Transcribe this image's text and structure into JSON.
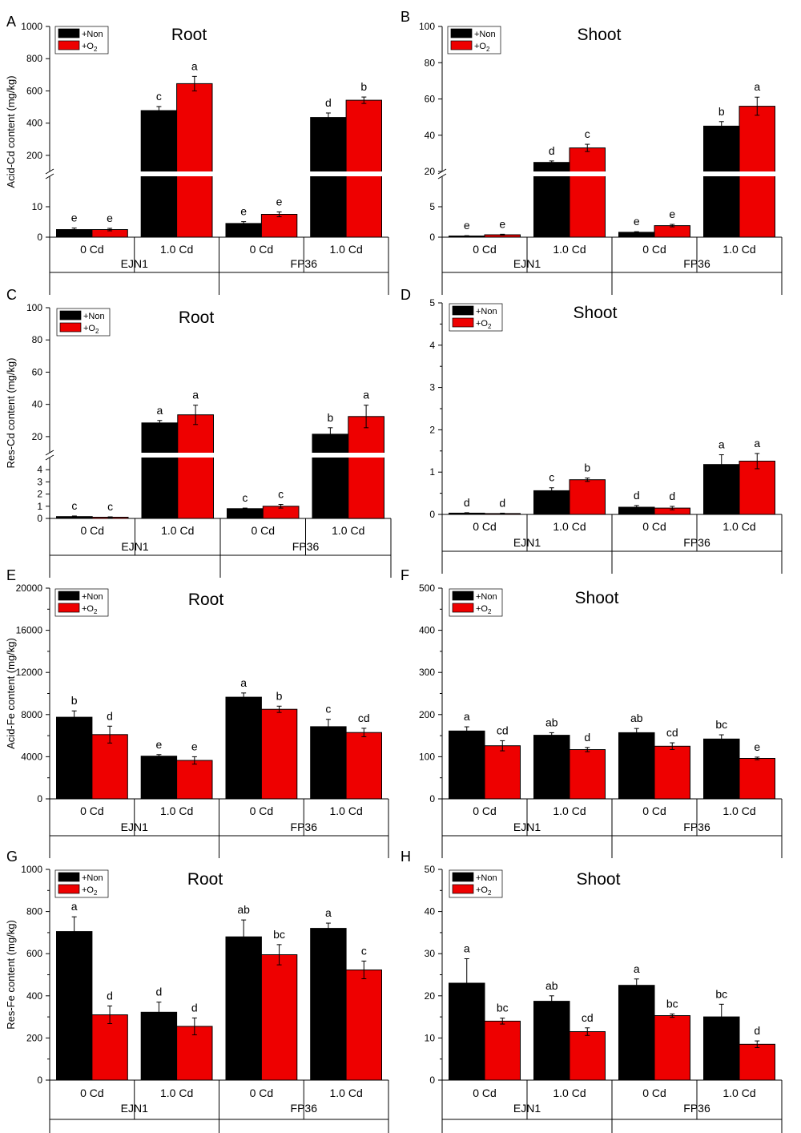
{
  "series_colors": {
    "Non": "#000000",
    "O2": "#ee0000"
  },
  "legend": [
    {
      "label": "+Non",
      "color": "#000000"
    },
    {
      "label": "+O",
      "sub": "2",
      "color": "#ee0000"
    }
  ],
  "chart_data": [
    {
      "panel": "A",
      "type": "bar",
      "title": "Root",
      "ylabel": "Acid-Cd content (mg/kg)",
      "groups": [
        "EJN1",
        "FP36"
      ],
      "categories": [
        "0 Cd",
        "1.0 Cd",
        "0 Cd",
        "1.0 Cd"
      ],
      "series": [
        {
          "name": "+Non",
          "values": [
            2.5,
            478,
            4.5,
            435
          ],
          "errors": [
            0.5,
            25,
            0.6,
            28
          ],
          "letters": [
            "e",
            "c",
            "e",
            "d"
          ]
        },
        {
          "name": "+O2",
          "values": [
            2.5,
            645,
            7.5,
            542
          ],
          "errors": [
            0.4,
            45,
            0.8,
            20
          ],
          "letters": [
            "e",
            "a",
            "e",
            "b"
          ]
        }
      ],
      "axis_break": {
        "lower": [
          0,
          20
        ],
        "upper": [
          100,
          1000
        ],
        "lower_ticks": [
          0,
          10
        ],
        "upper_ticks": [
          200,
          400,
          600,
          800,
          1000
        ]
      }
    },
    {
      "panel": "B",
      "type": "bar",
      "title": "Shoot",
      "groups": [
        "EJN1",
        "FP36"
      ],
      "categories": [
        "0 Cd",
        "1.0 Cd",
        "0 Cd",
        "1.0 Cd"
      ],
      "series": [
        {
          "name": "+Non",
          "values": [
            0.2,
            25,
            0.8,
            45
          ],
          "errors": [
            0.05,
            0.8,
            0.1,
            2.5
          ],
          "letters": [
            "e",
            "d",
            "e",
            "b"
          ]
        },
        {
          "name": "+O2",
          "values": [
            0.4,
            33,
            1.9,
            56
          ],
          "errors": [
            0.08,
            2,
            0.2,
            5
          ],
          "letters": [
            "e",
            "c",
            "e",
            "a"
          ]
        }
      ],
      "axis_break": {
        "lower": [
          0,
          10
        ],
        "upper": [
          20,
          100
        ],
        "lower_ticks": [
          0,
          5
        ],
        "upper_ticks": [
          20,
          40,
          60,
          80,
          100
        ]
      }
    },
    {
      "panel": "C",
      "type": "bar",
      "title": "Root",
      "ylabel": "Res-Cd content (mg/kg)",
      "groups": [
        "EJN1",
        "FP36"
      ],
      "categories": [
        "0 Cd",
        "1.0 Cd",
        "0 Cd",
        "1.0 Cd"
      ],
      "series": [
        {
          "name": "+Non",
          "values": [
            0.15,
            28.5,
            0.8,
            21.5
          ],
          "errors": [
            0.05,
            1.5,
            0.05,
            4
          ],
          "letters": [
            "c",
            "a",
            "c",
            "b"
          ]
        },
        {
          "name": "+O2",
          "values": [
            0.1,
            33.5,
            1.0,
            32.5
          ],
          "errors": [
            0.03,
            6,
            0.15,
            7
          ],
          "letters": [
            "c",
            "a",
            "c",
            "a"
          ]
        }
      ],
      "axis_break": {
        "lower": [
          0,
          5
        ],
        "upper": [
          10,
          100
        ],
        "lower_ticks": [
          0,
          1,
          2,
          3,
          4
        ],
        "upper_ticks": [
          20,
          40,
          60,
          80,
          100
        ]
      }
    },
    {
      "panel": "D",
      "type": "bar",
      "title": "Shoot",
      "ylim": [
        0,
        5
      ],
      "yticks": [
        0,
        1,
        2,
        3,
        4,
        5
      ],
      "groups": [
        "EJN1",
        "FP36"
      ],
      "categories": [
        "0 Cd",
        "1.0 Cd",
        "0 Cd",
        "1.0 Cd"
      ],
      "series": [
        {
          "name": "+Non",
          "values": [
            0.03,
            0.56,
            0.17,
            1.18
          ],
          "errors": [
            0.01,
            0.07,
            0.04,
            0.23
          ],
          "letters": [
            "d",
            "c",
            "d",
            "a"
          ]
        },
        {
          "name": "+O2",
          "values": [
            0.02,
            0.82,
            0.15,
            1.26
          ],
          "errors": [
            0.01,
            0.04,
            0.04,
            0.18
          ],
          "letters": [
            "d",
            "b",
            "d",
            "a"
          ]
        }
      ]
    },
    {
      "panel": "E",
      "type": "bar",
      "title": "Root",
      "ylabel": "Acid-Fe content (mg/kg)",
      "ylim": [
        0,
        20000
      ],
      "yticks": [
        0,
        4000,
        8000,
        12000,
        16000,
        20000
      ],
      "groups": [
        "EJN1",
        "FP36"
      ],
      "categories": [
        "0 Cd",
        "1.0 Cd",
        "0 Cd",
        "1.0 Cd"
      ],
      "series": [
        {
          "name": "+Non",
          "values": [
            7750,
            4050,
            9650,
            6850
          ],
          "errors": [
            600,
            150,
            400,
            700
          ],
          "letters": [
            "b",
            "e",
            "a",
            "c"
          ]
        },
        {
          "name": "+O2",
          "values": [
            6100,
            3650,
            8500,
            6300
          ],
          "errors": [
            800,
            350,
            300,
            400
          ],
          "letters": [
            "d",
            "e",
            "b",
            "cd"
          ]
        }
      ]
    },
    {
      "panel": "F",
      "type": "bar",
      "title": "Shoot",
      "ylim": [
        0,
        500
      ],
      "yticks": [
        0,
        100,
        200,
        300,
        400,
        500
      ],
      "groups": [
        "EJN1",
        "FP36"
      ],
      "categories": [
        "0 Cd",
        "1.0 Cd",
        "0 Cd",
        "1.0 Cd"
      ],
      "series": [
        {
          "name": "+Non",
          "values": [
            161,
            151,
            157,
            142
          ],
          "errors": [
            10,
            6,
            10,
            10
          ],
          "letters": [
            "a",
            "ab",
            "ab",
            "bc"
          ]
        },
        {
          "name": "+O2",
          "values": [
            126,
            117,
            125,
            96
          ],
          "errors": [
            12,
            5,
            8,
            3
          ],
          "letters": [
            "cd",
            "d",
            "cd",
            "e"
          ]
        }
      ]
    },
    {
      "panel": "G",
      "type": "bar",
      "title": "Root",
      "ylabel": "Res-Fe content (mg/kg)",
      "ylim": [
        0,
        1000
      ],
      "yticks": [
        0,
        200,
        400,
        600,
        800,
        1000
      ],
      "groups": [
        "EJN1",
        "FP36"
      ],
      "categories": [
        "0 Cd",
        "1.0 Cd",
        "0 Cd",
        "1.0 Cd"
      ],
      "series": [
        {
          "name": "+Non",
          "values": [
            705,
            322,
            680,
            720
          ],
          "errors": [
            70,
            48,
            80,
            25
          ],
          "letters": [
            "a",
            "d",
            "ab",
            "a"
          ]
        },
        {
          "name": "+O2",
          "values": [
            310,
            255,
            595,
            523
          ],
          "errors": [
            42,
            40,
            48,
            42
          ],
          "letters": [
            "d",
            "d",
            "bc",
            "c"
          ]
        }
      ]
    },
    {
      "panel": "H",
      "type": "bar",
      "title": "Shoot",
      "ylim": [
        0,
        50
      ],
      "yticks": [
        0,
        10,
        20,
        30,
        40,
        50
      ],
      "groups": [
        "EJN1",
        "FP36"
      ],
      "categories": [
        "0 Cd",
        "1.0 Cd",
        "0 Cd",
        "1.0 Cd"
      ],
      "series": [
        {
          "name": "+Non",
          "values": [
            23,
            18.7,
            22.5,
            15
          ],
          "errors": [
            5.8,
            1.3,
            1.5,
            3
          ],
          "letters": [
            "a",
            "ab",
            "a",
            "bc"
          ]
        },
        {
          "name": "+O2",
          "values": [
            14,
            11.5,
            15.3,
            8.5
          ],
          "errors": [
            0.7,
            0.9,
            0.4,
            0.8
          ],
          "letters": [
            "bc",
            "cd",
            "bc",
            "d"
          ]
        }
      ]
    }
  ]
}
